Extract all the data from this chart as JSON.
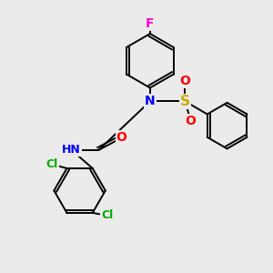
{
  "background_color": "#ebebeb",
  "atom_colors": {
    "F": "#ff00cc",
    "N": "#0000ff",
    "S": "#ccaa00",
    "O": "#ff0000",
    "Cl": "#00aa00",
    "C": "#000000"
  },
  "bond_color": "#000000",
  "bond_width": 1.4,
  "font_size": 9,
  "figsize": [
    3.0,
    3.0
  ],
  "dpi": 100,
  "xlim": [
    0,
    10
  ],
  "ylim": [
    0,
    10
  ]
}
